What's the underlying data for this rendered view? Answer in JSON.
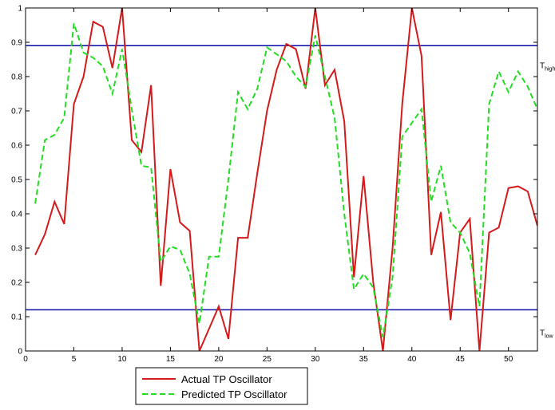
{
  "chart_data": {
    "type": "line",
    "xlim": [
      0,
      53
    ],
    "ylim": [
      0,
      1
    ],
    "xticks": [
      0,
      5,
      10,
      15,
      20,
      25,
      30,
      35,
      40,
      45,
      50
    ],
    "yticks": [
      0,
      0.1,
      0.2,
      0.3,
      0.4,
      0.5,
      0.6,
      0.7,
      0.8,
      0.9,
      1
    ],
    "grid": false,
    "legend_position": "bottom-left-outside",
    "thresholds": [
      {
        "label": "T",
        "sub": "high",
        "y": 0.89,
        "color": "#0a0aa8"
      },
      {
        "label": "T",
        "sub": "low",
        "y": 0.12,
        "color": "#0a0aa8"
      }
    ],
    "series": [
      {
        "name": "Actual TP Oscillator",
        "color": "#d41a1a",
        "dash": "solid",
        "x": [
          1,
          2,
          3,
          4,
          5,
          6,
          7,
          8,
          9,
          10,
          11,
          12,
          13,
          14,
          15,
          16,
          17,
          18,
          19,
          20,
          21,
          22,
          23,
          24,
          25,
          26,
          27,
          28,
          29,
          30,
          31,
          32,
          33,
          34,
          35,
          36,
          37,
          38,
          39,
          40,
          41,
          42,
          43,
          44,
          45,
          46,
          47,
          48,
          49,
          50,
          51,
          52,
          53
        ],
        "y": [
          0.28,
          0.34,
          0.435,
          0.37,
          0.72,
          0.8,
          0.96,
          0.945,
          0.825,
          1.0,
          0.615,
          0.58,
          0.775,
          0.19,
          0.53,
          0.375,
          0.35,
          0.0,
          0.065,
          0.13,
          0.035,
          0.33,
          0.33,
          0.52,
          0.7,
          0.82,
          0.895,
          0.88,
          0.765,
          1.0,
          0.775,
          0.82,
          0.67,
          0.215,
          0.51,
          0.2,
          0.0,
          0.3,
          0.72,
          1.0,
          0.86,
          0.28,
          0.405,
          0.09,
          0.345,
          0.385,
          0.0,
          0.345,
          0.36,
          0.475,
          0.48,
          0.465,
          0.365
        ]
      },
      {
        "name": "Predicted TP Oscillator",
        "color": "#22dd22",
        "dash": "dashed",
        "x": [
          1,
          2,
          3,
          4,
          5,
          6,
          7,
          8,
          9,
          10,
          11,
          12,
          13,
          14,
          15,
          16,
          17,
          18,
          19,
          20,
          21,
          22,
          23,
          24,
          25,
          26,
          27,
          28,
          29,
          30,
          31,
          32,
          33,
          34,
          35,
          36,
          37,
          38,
          39,
          40,
          41,
          42,
          43,
          44,
          45,
          46,
          47,
          48,
          49,
          50,
          51,
          52,
          53
        ],
        "y": [
          0.43,
          0.615,
          0.63,
          0.68,
          0.955,
          0.87,
          0.855,
          0.83,
          0.75,
          0.88,
          0.705,
          0.54,
          0.535,
          0.26,
          0.305,
          0.295,
          0.225,
          0.08,
          0.275,
          0.275,
          0.5,
          0.755,
          0.705,
          0.765,
          0.885,
          0.865,
          0.845,
          0.8,
          0.77,
          0.92,
          0.8,
          0.68,
          0.4,
          0.18,
          0.225,
          0.185,
          0.04,
          0.215,
          0.625,
          0.665,
          0.705,
          0.435,
          0.54,
          0.375,
          0.345,
          0.285,
          0.13,
          0.72,
          0.815,
          0.755,
          0.815,
          0.77,
          0.705
        ]
      }
    ]
  }
}
